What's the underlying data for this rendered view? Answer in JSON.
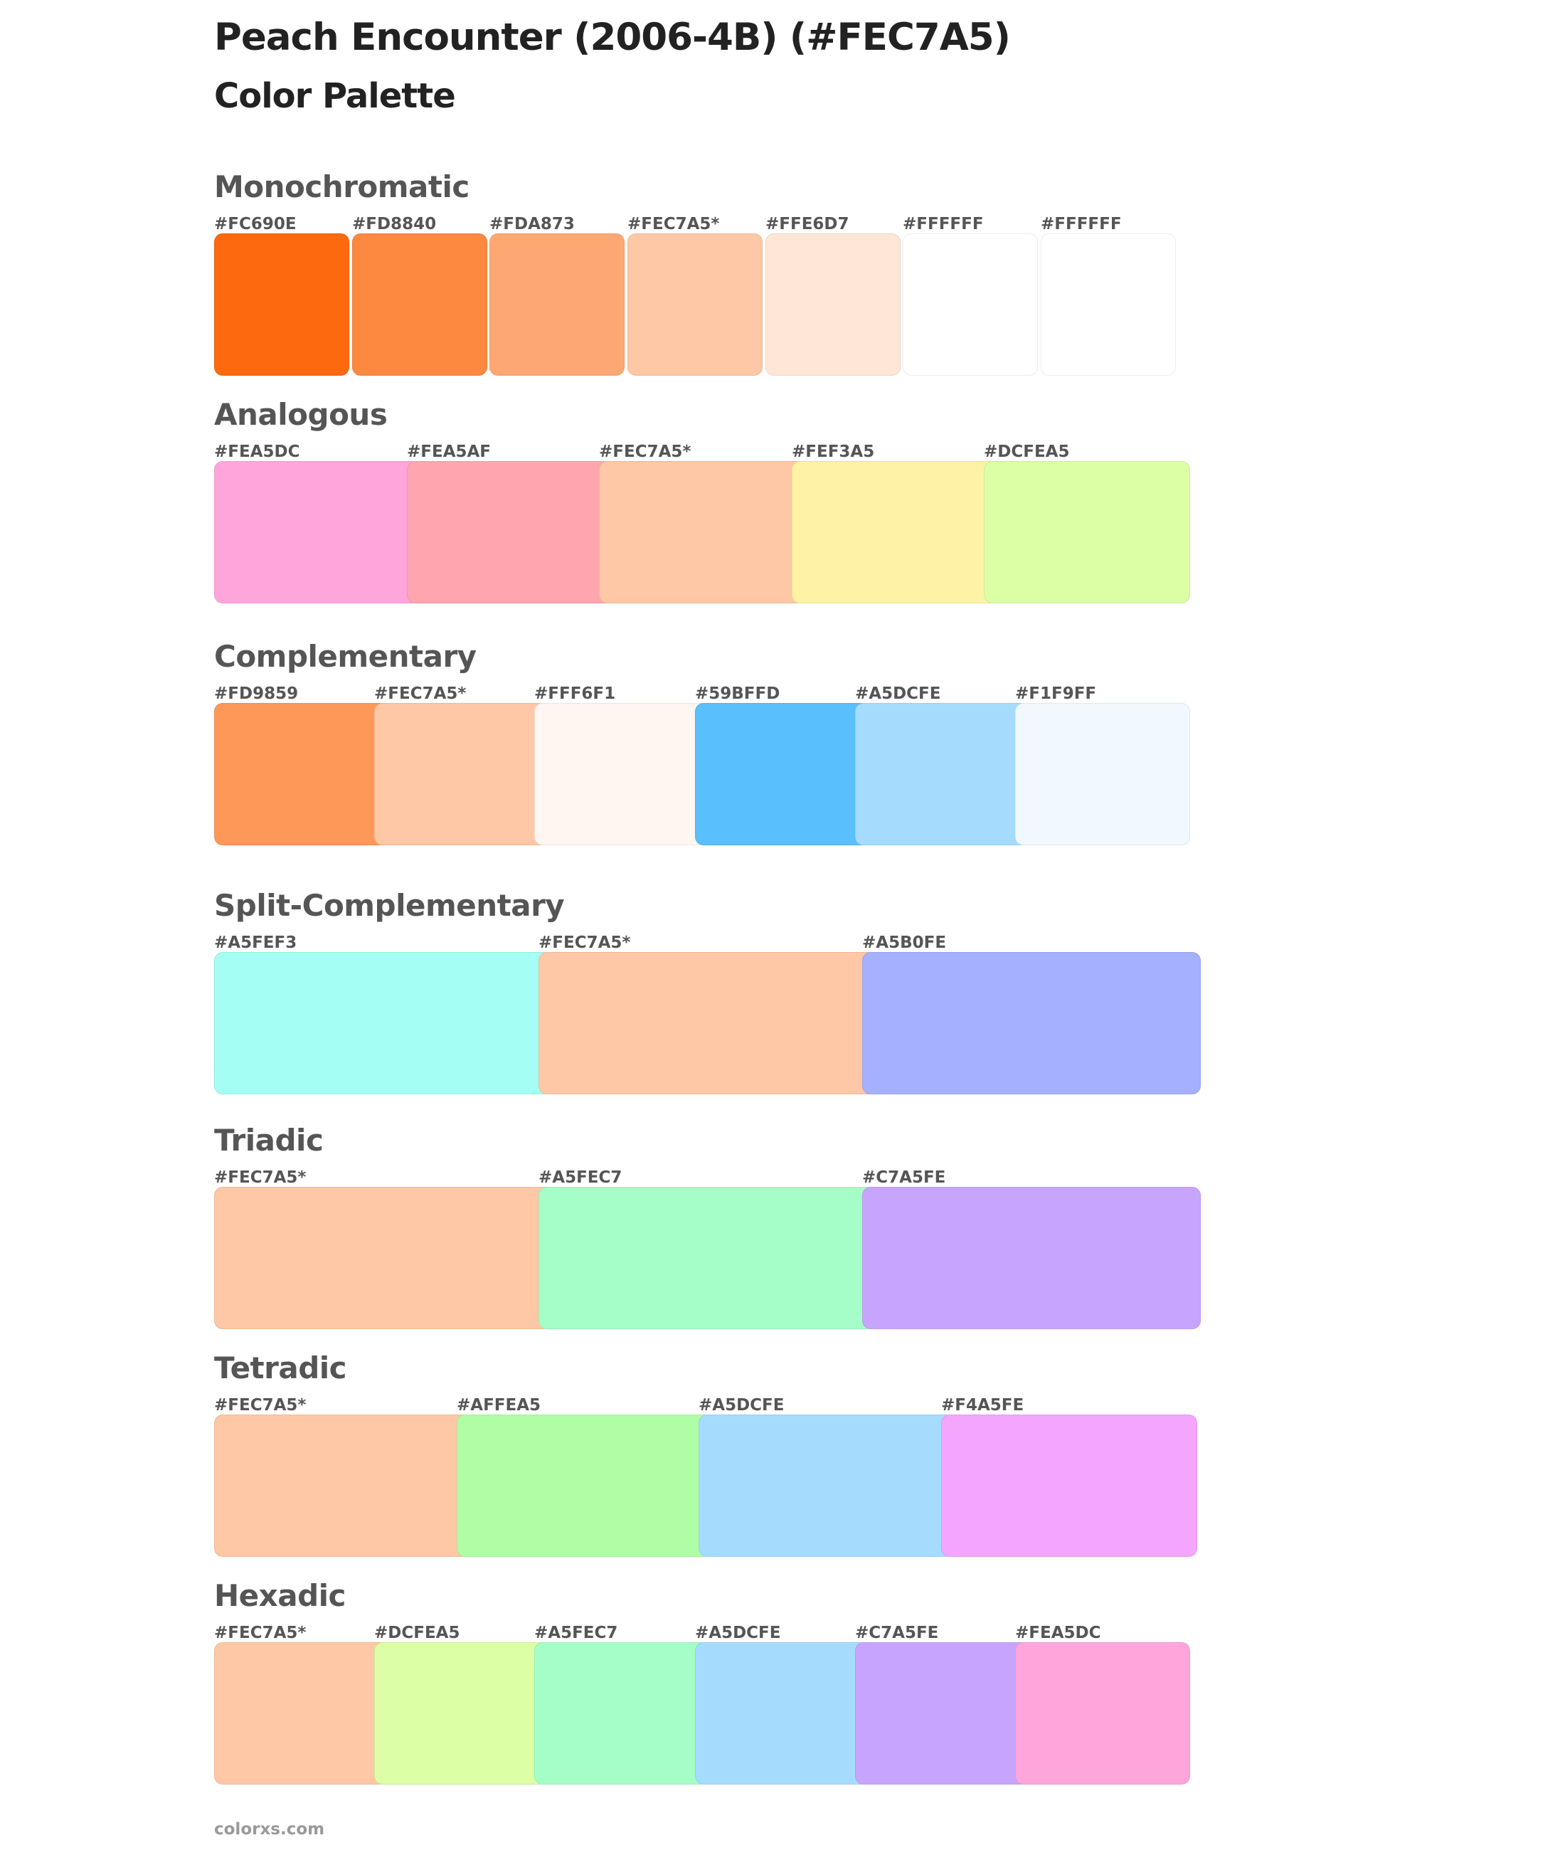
{
  "title": "Peach Encounter (2006-4B) (#FEC7A5)",
  "subtitle": "Color Palette",
  "footer": "colorxs.com",
  "palettes": [
    {
      "name": "Monochromatic",
      "colors": [
        {
          "label": "#FC690E",
          "hex": "#FC690E"
        },
        {
          "label": "#FD8840",
          "hex": "#FD8840"
        },
        {
          "label": "#FDA873",
          "hex": "#FDA873"
        },
        {
          "label": "#FEC7A5*",
          "hex": "#FEC7A5"
        },
        {
          "label": "#FFE6D7",
          "hex": "#FFE6D7"
        },
        {
          "label": "#FFFFFF",
          "hex": "#FFFFFF"
        },
        {
          "label": "#FFFFFF",
          "hex": "#FFFFFF"
        }
      ]
    },
    {
      "name": "Analogous",
      "colors": [
        {
          "label": "#FEA5DC",
          "hex": "#FEA5DC"
        },
        {
          "label": "#FEA5AF",
          "hex": "#FEA5AF"
        },
        {
          "label": "#FEC7A5*",
          "hex": "#FEC7A5"
        },
        {
          "label": "#FEF3A5",
          "hex": "#FEF3A5"
        },
        {
          "label": "#DCFEA5",
          "hex": "#DCFEA5"
        }
      ]
    },
    {
      "name": "Complementary",
      "colors": [
        {
          "label": "#FD9859",
          "hex": "#FD9859"
        },
        {
          "label": "#FEC7A5*",
          "hex": "#FEC7A5"
        },
        {
          "label": "#FFF6F1",
          "hex": "#FFF6F1"
        },
        {
          "label": "#59BFFD",
          "hex": "#59BFFD"
        },
        {
          "label": "#A5DCFE",
          "hex": "#A5DCFE"
        },
        {
          "label": "#F1F9FF",
          "hex": "#F1F9FF"
        }
      ]
    },
    {
      "name": "Split-Complementary",
      "colors": [
        {
          "label": "#A5FEF3",
          "hex": "#A5FEF3"
        },
        {
          "label": "#FEC7A5*",
          "hex": "#FEC7A5"
        },
        {
          "label": "#A5B0FE",
          "hex": "#A5B0FE"
        }
      ]
    },
    {
      "name": "Triadic",
      "colors": [
        {
          "label": "#FEC7A5*",
          "hex": "#FEC7A5"
        },
        {
          "label": "#A5FEC7",
          "hex": "#A5FEC7"
        },
        {
          "label": "#C7A5FE",
          "hex": "#C7A5FE"
        }
      ]
    },
    {
      "name": "Tetradic",
      "colors": [
        {
          "label": "#FEC7A5*",
          "hex": "#FEC7A5"
        },
        {
          "label": "#AFFEA5",
          "hex": "#AFFEA5"
        },
        {
          "label": "#A5DCFE",
          "hex": "#A5DCFE"
        },
        {
          "label": "#F4A5FE",
          "hex": "#F4A5FE"
        }
      ]
    },
    {
      "name": "Hexadic",
      "colors": [
        {
          "label": "#FEC7A5*",
          "hex": "#FEC7A5"
        },
        {
          "label": "#DCFEA5",
          "hex": "#DCFEA5"
        },
        {
          "label": "#A5FEC7",
          "hex": "#A5FEC7"
        },
        {
          "label": "#A5DCFE",
          "hex": "#A5DCFE"
        },
        {
          "label": "#C7A5FE",
          "hex": "#C7A5FE"
        },
        {
          "label": "#FEA5DC",
          "hex": "#FEA5DC"
        }
      ]
    }
  ]
}
